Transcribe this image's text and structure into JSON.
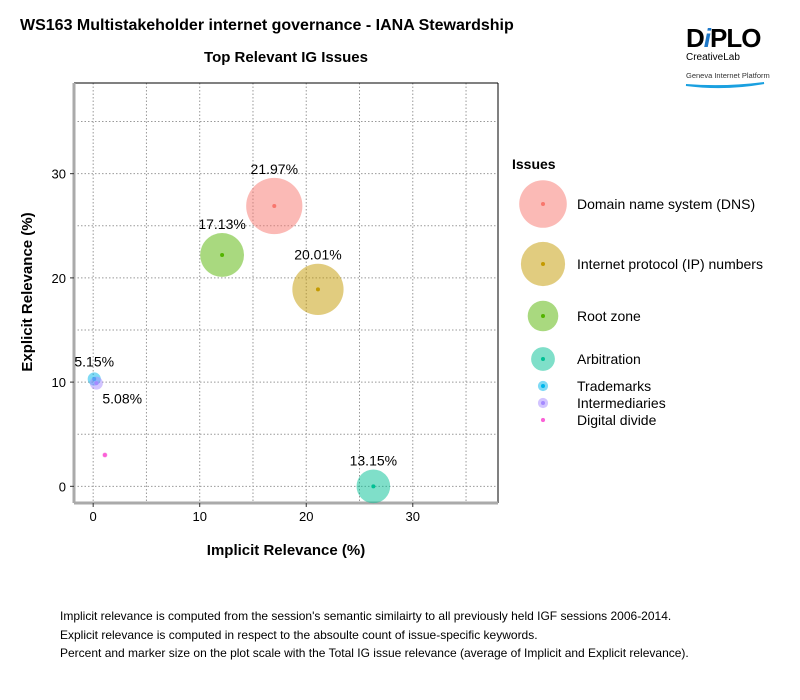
{
  "header": {
    "title": "WS163 Multistakeholder internet governance - IANA Stewardship"
  },
  "logo": {
    "brand": "DiPLO",
    "sub": "CreativeLab",
    "tagline": "Geneva Internet Platform"
  },
  "chart_data": {
    "type": "scatter",
    "title": "Top Relevant IG Issues",
    "xlabel": "Implicit Relevance (%)",
    "ylabel": "Explicit Relevance (%)",
    "xlim": [
      -1.8,
      38
    ],
    "ylim": [
      -1.6,
      38.7
    ],
    "xticks": [
      0,
      10,
      20,
      30
    ],
    "yticks": [
      0,
      10,
      20,
      30
    ],
    "grid": true,
    "legend_title": "Issues",
    "legend_position": "right",
    "series": [
      {
        "name": "Domain name system (DNS)",
        "x": 17.0,
        "y": 26.9,
        "label": "21.97%",
        "size": 21.97,
        "color": "#F8766D"
      },
      {
        "name": "Internet protocol (IP) numbers",
        "x": 21.1,
        "y": 18.9,
        "label": "20.01%",
        "size": 20.01,
        "color": "#C49A00"
      },
      {
        "name": "Root zone",
        "x": 12.1,
        "y": 22.2,
        "label": "17.13%",
        "size": 17.13,
        "color": "#53B400"
      },
      {
        "name": "Arbitration",
        "x": 26.3,
        "y": 0.0,
        "label": "13.15%",
        "size": 13.15,
        "color": "#00C094"
      },
      {
        "name": "Trademarks",
        "x": 0.1,
        "y": 10.3,
        "label": "5.15%",
        "size": 5.15,
        "color": "#00B6EB"
      },
      {
        "name": "Intermediaries",
        "x": 0.3,
        "y": 9.9,
        "label": "5.08%",
        "size": 5.08,
        "color": "#A58AFF"
      },
      {
        "name": "Digital divide",
        "x": 1.1,
        "y": 3.0,
        "label": "",
        "size": 1.5,
        "color": "#FB61D7"
      }
    ]
  },
  "footnotes": [
    "Implicit relevance is computed from the session's semantic similairty to all previously held IGF sessions 2006-2014.",
    "Explicit relevance is computed in respect to the absoulte count of issue-specific keywords.",
    "Percent and marker size on the plot scale with the Total IG issue relevance (average of Implicit and Explicit relevance)."
  ]
}
